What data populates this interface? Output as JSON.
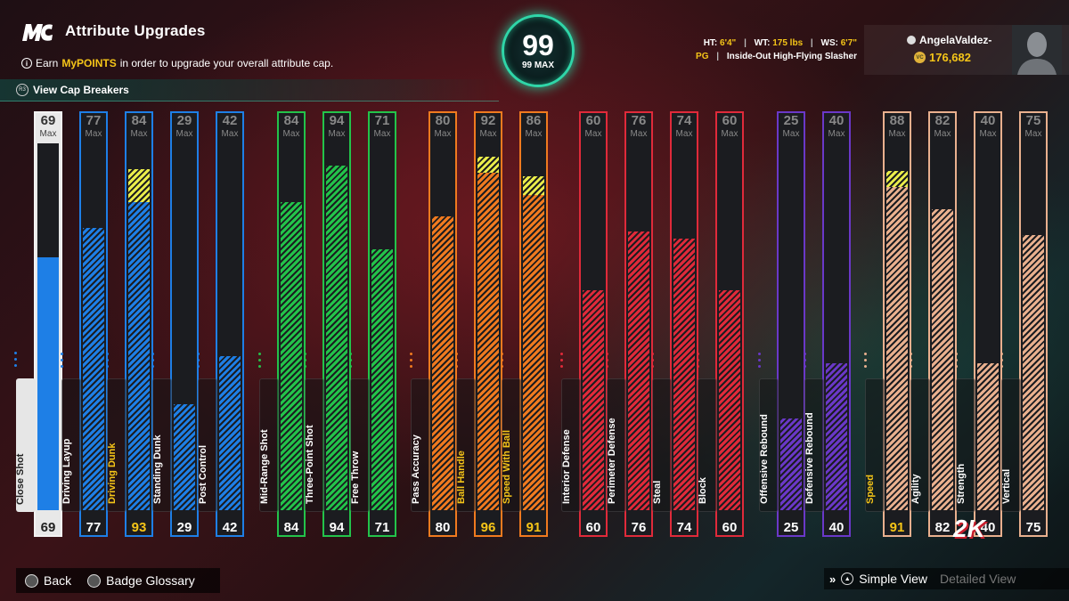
{
  "header": {
    "title": "Attribute Upgrades",
    "info_prefix": "Earn ",
    "info_highlight": "MyPOINTS",
    "info_suffix": " in order to upgrade your overall attribute cap.",
    "cap_breakers_label": "View Cap Breakers"
  },
  "overall": {
    "value": "99",
    "max_label": "99 MAX"
  },
  "player": {
    "ht_label": "HT:",
    "ht": "6'4\"",
    "wt_label": "WT:",
    "wt": "175 lbs",
    "ws_label": "WS:",
    "ws": "6'7\"",
    "position": "PG",
    "archetype": "Inside-Out High-Flying Slasher",
    "name": "AngelaValdez-",
    "vc_amount": "176,682"
  },
  "max_label": "Max",
  "colors": {
    "inside": "#1e7fe6",
    "shooting": "#23c34a",
    "playmaking": "#f07a1f",
    "defense": "#e02a3a",
    "rebounding": "#6a38c8",
    "physical": "#e9b08e",
    "upgrade": "#e9ec4a",
    "highlight": "#f5c518",
    "selected_frame": "#f2f2f2"
  },
  "attributes": [
    {
      "name": "Close Shot",
      "current": 69,
      "cap": 69,
      "upgraded": 69,
      "group": "inside",
      "selected": true
    },
    {
      "name": "Driving Layup",
      "current": 77,
      "cap": 77,
      "upgraded": 77,
      "group": "inside"
    },
    {
      "name": "Driving Dunk",
      "current": 84,
      "cap": 84,
      "upgraded": 93,
      "group": "inside"
    },
    {
      "name": "Standing Dunk",
      "current": 29,
      "cap": 29,
      "upgraded": 29,
      "group": "inside"
    },
    {
      "name": "Post Control",
      "current": 42,
      "cap": 42,
      "upgraded": 42,
      "group": "inside"
    },
    {
      "name": "Mid-Range Shot",
      "current": 84,
      "cap": 84,
      "upgraded": 84,
      "group": "shooting"
    },
    {
      "name": "Three-Point Shot",
      "current": 94,
      "cap": 94,
      "upgraded": 94,
      "group": "shooting"
    },
    {
      "name": "Free Throw",
      "current": 71,
      "cap": 71,
      "upgraded": 71,
      "group": "shooting"
    },
    {
      "name": "Pass Accuracy",
      "current": 80,
      "cap": 80,
      "upgraded": 80,
      "group": "playmaking"
    },
    {
      "name": "Ball Handle",
      "current": 92,
      "cap": 92,
      "upgraded": 96,
      "group": "playmaking"
    },
    {
      "name": "Speed With Ball",
      "current": 86,
      "cap": 86,
      "upgraded": 91,
      "group": "playmaking"
    },
    {
      "name": "Interior Defense",
      "current": 60,
      "cap": 60,
      "upgraded": 60,
      "group": "defense"
    },
    {
      "name": "Perimeter Defense",
      "current": 76,
      "cap": 76,
      "upgraded": 76,
      "group": "defense"
    },
    {
      "name": "Steal",
      "current": 74,
      "cap": 74,
      "upgraded": 74,
      "group": "defense"
    },
    {
      "name": "Block",
      "current": 60,
      "cap": 60,
      "upgraded": 60,
      "group": "defense"
    },
    {
      "name": "Offensive Rebound",
      "current": 25,
      "cap": 25,
      "upgraded": 25,
      "group": "rebounding"
    },
    {
      "name": "Defensive Rebound",
      "current": 40,
      "cap": 40,
      "upgraded": 40,
      "group": "rebounding"
    },
    {
      "name": "Speed",
      "current": 88,
      "cap": 88,
      "upgraded": 91,
      "group": "physical"
    },
    {
      "name": "Agility",
      "current": 82,
      "cap": 82,
      "upgraded": 82,
      "group": "physical"
    },
    {
      "name": "Strength",
      "current": 40,
      "cap": 40,
      "upgraded": 40,
      "group": "physical"
    },
    {
      "name": "Vertical",
      "current": 75,
      "cap": 75,
      "upgraded": 75,
      "group": "physical"
    }
  ],
  "footer": {
    "back_label": "Back",
    "glossary_label": "Badge Glossary",
    "simple_view_label": "Simple View",
    "detailed_view_label": "Detailed View"
  },
  "logo_text": "2K"
}
